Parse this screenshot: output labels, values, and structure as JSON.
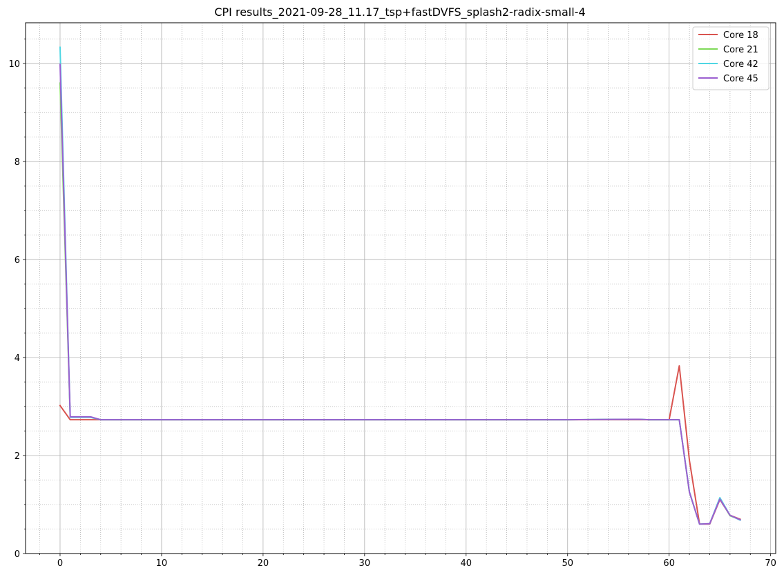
{
  "chart_data": {
    "type": "line",
    "title": "CPI results_2021-09-28_11.17_tsp+fastDVFS_splash2-radix-small-4",
    "xlabel": "",
    "ylabel": "",
    "xlim": [
      -3.4,
      70.5
    ],
    "ylim": [
      0,
      10.83
    ],
    "xticks": [
      0,
      10,
      20,
      30,
      40,
      50,
      60,
      70
    ],
    "yticks": [
      0,
      2,
      4,
      6,
      8,
      10
    ],
    "grid": {
      "major": true,
      "minor": true
    },
    "legend": {
      "position": "top-right"
    },
    "series": [
      {
        "name": "Core 18",
        "color": "#d9534f",
        "points": [
          [
            0,
            3.02
          ],
          [
            1,
            2.73
          ],
          [
            2,
            2.73
          ],
          [
            3,
            2.73
          ],
          [
            4,
            2.73
          ],
          [
            5,
            2.73
          ],
          [
            10,
            2.73
          ],
          [
            20,
            2.73
          ],
          [
            30,
            2.73
          ],
          [
            40,
            2.73
          ],
          [
            50,
            2.73
          ],
          [
            57,
            2.73
          ],
          [
            58,
            2.73
          ],
          [
            59,
            2.73
          ],
          [
            60,
            2.73
          ],
          [
            61,
            3.83
          ],
          [
            62,
            1.9
          ],
          [
            63,
            0.6
          ],
          [
            64,
            0.6
          ],
          [
            65,
            1.1
          ],
          [
            66,
            0.78
          ],
          [
            67,
            0.7
          ]
        ]
      },
      {
        "name": "Core 21",
        "color": "#7ed957",
        "points": [
          [
            0,
            9.6
          ],
          [
            1,
            2.78
          ],
          [
            2,
            2.78
          ],
          [
            3,
            2.78
          ],
          [
            4,
            2.73
          ],
          [
            5,
            2.73
          ],
          [
            10,
            2.73
          ],
          [
            20,
            2.73
          ],
          [
            30,
            2.73
          ],
          [
            40,
            2.73
          ],
          [
            50,
            2.73
          ],
          [
            57,
            2.74
          ],
          [
            58,
            2.73
          ],
          [
            59,
            2.73
          ],
          [
            60,
            2.73
          ],
          [
            61,
            2.73
          ],
          [
            62,
            1.25
          ],
          [
            63,
            0.6
          ],
          [
            64,
            0.61
          ],
          [
            65,
            1.12
          ],
          [
            66,
            0.77
          ],
          [
            67,
            0.69
          ]
        ]
      },
      {
        "name": "Core 42",
        "color": "#4fd6e3",
        "points": [
          [
            0,
            10.33
          ],
          [
            1,
            2.78
          ],
          [
            2,
            2.78
          ],
          [
            3,
            2.78
          ],
          [
            4,
            2.73
          ],
          [
            5,
            2.73
          ],
          [
            10,
            2.73
          ],
          [
            20,
            2.73
          ],
          [
            30,
            2.73
          ],
          [
            40,
            2.73
          ],
          [
            50,
            2.73
          ],
          [
            57,
            2.74
          ],
          [
            58,
            2.73
          ],
          [
            59,
            2.73
          ],
          [
            60,
            2.73
          ],
          [
            61,
            2.73
          ],
          [
            62,
            1.26
          ],
          [
            63,
            0.6
          ],
          [
            64,
            0.61
          ],
          [
            65,
            1.14
          ],
          [
            66,
            0.78
          ],
          [
            67,
            0.68
          ]
        ]
      },
      {
        "name": "Core 45",
        "color": "#9b5fd0",
        "points": [
          [
            0,
            9.98
          ],
          [
            1,
            2.79
          ],
          [
            2,
            2.79
          ],
          [
            3,
            2.79
          ],
          [
            4,
            2.73
          ],
          [
            5,
            2.73
          ],
          [
            10,
            2.73
          ],
          [
            20,
            2.73
          ],
          [
            30,
            2.73
          ],
          [
            40,
            2.73
          ],
          [
            50,
            2.73
          ],
          [
            57,
            2.74
          ],
          [
            58,
            2.73
          ],
          [
            59,
            2.73
          ],
          [
            60,
            2.73
          ],
          [
            61,
            2.73
          ],
          [
            62,
            1.25
          ],
          [
            63,
            0.6
          ],
          [
            64,
            0.61
          ],
          [
            65,
            1.11
          ],
          [
            66,
            0.78
          ],
          [
            67,
            0.69
          ]
        ]
      }
    ]
  }
}
